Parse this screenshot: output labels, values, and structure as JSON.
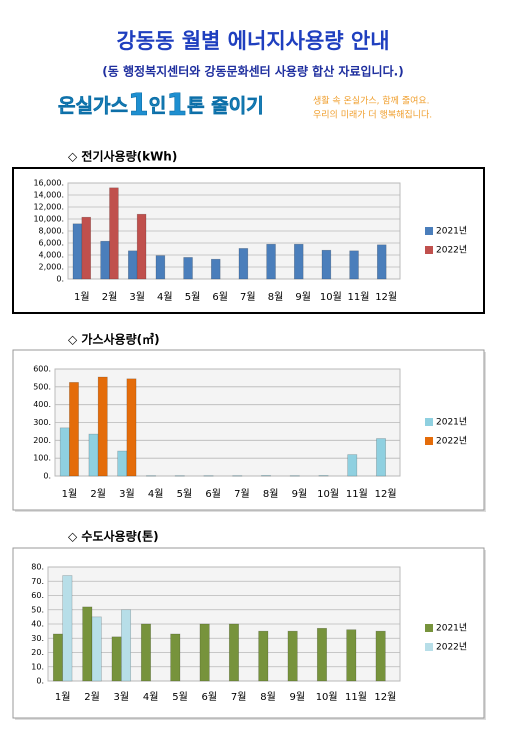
{
  "header": {
    "title": "강동동 월별 에너지사용량 안내",
    "subtitle": "(동 행정복지센터와 강동문화센터 사용량 합산 자료입니다.)",
    "banner": [
      "온실가스",
      "1",
      "인",
      "1",
      "톤 줄이기"
    ],
    "slogan": [
      "생활 속 온실가스, 함께 줄여요.",
      "우리의 미래가 더 행복해집니다."
    ]
  },
  "chart_data": [
    {
      "type": "bar",
      "title": "◇ 전기사용량(kWh)",
      "categories": [
        "1월",
        "2월",
        "3월",
        "4월",
        "5월",
        "6월",
        "7월",
        "8월",
        "9월",
        "10월",
        "11월",
        "12월"
      ],
      "series": [
        {
          "name": "2021년",
          "color": "#4a7ebb",
          "values": [
            9200,
            6300,
            4700,
            3900,
            3600,
            3300,
            5100,
            5800,
            5800,
            4800,
            4700,
            5700
          ]
        },
        {
          "name": "2022년",
          "color": "#c0504d",
          "values": [
            10300,
            15200,
            10800,
            null,
            null,
            null,
            null,
            null,
            null,
            null,
            null,
            null
          ]
        }
      ],
      "ylim": [
        0,
        16000
      ],
      "yticks": [
        {
          "value": 0,
          "label": "0."
        },
        {
          "value": 2000,
          "label": "2,000."
        },
        {
          "value": 4000,
          "label": "4,000."
        },
        {
          "value": 6000,
          "label": "6,000."
        },
        {
          "value": 8000,
          "label": "8,000."
        },
        {
          "value": 10000,
          "label": "10,000."
        },
        {
          "value": 12000,
          "label": "12,000."
        },
        {
          "value": 14000,
          "label": "14,000."
        },
        {
          "value": 16000,
          "label": "16,000."
        }
      ],
      "grid": true,
      "legend": "right"
    },
    {
      "type": "bar",
      "title": "◇ 가스사용량(㎥)",
      "categories": [
        "1월",
        "2월",
        "3월",
        "4월",
        "5월",
        "6월",
        "7월",
        "8월",
        "9월",
        "10월",
        "11월",
        "12월"
      ],
      "series": [
        {
          "name": "2021년",
          "color": "#8fd0e0",
          "values": [
            270,
            235,
            140,
            2,
            2,
            2,
            2,
            3,
            2,
            3,
            120,
            210
          ]
        },
        {
          "name": "2022년",
          "color": "#e46c0a",
          "values": [
            525,
            555,
            545,
            null,
            null,
            null,
            null,
            null,
            null,
            null,
            null,
            null
          ]
        }
      ],
      "ylim": [
        0,
        600
      ],
      "yticks": [
        {
          "value": 0,
          "label": "0."
        },
        {
          "value": 100,
          "label": "100."
        },
        {
          "value": 200,
          "label": "200."
        },
        {
          "value": 300,
          "label": "300."
        },
        {
          "value": 400,
          "label": "400."
        },
        {
          "value": 500,
          "label": "500."
        },
        {
          "value": 600,
          "label": "600."
        }
      ],
      "grid": true,
      "legend": "right"
    },
    {
      "type": "bar",
      "title": "◇ 수도사용량(톤)",
      "categories": [
        "1월",
        "2월",
        "3월",
        "4월",
        "5월",
        "6월",
        "7월",
        "8월",
        "9월",
        "10월",
        "11월",
        "12월"
      ],
      "series": [
        {
          "name": "2021년",
          "color": "#77933c",
          "values": [
            33,
            52,
            31,
            40,
            33,
            40,
            40,
            35,
            35,
            37,
            36,
            35
          ]
        },
        {
          "name": "2022년",
          "color": "#b7dee8",
          "values": [
            74,
            45,
            50,
            null,
            null,
            null,
            null,
            null,
            null,
            null,
            null,
            null
          ]
        }
      ],
      "ylim": [
        0,
        80
      ],
      "yticks": [
        {
          "value": 0,
          "label": "0."
        },
        {
          "value": 10,
          "label": "10."
        },
        {
          "value": 20,
          "label": "20."
        },
        {
          "value": 30,
          "label": "30."
        },
        {
          "value": 40,
          "label": "40."
        },
        {
          "value": 50,
          "label": "50."
        },
        {
          "value": 60,
          "label": "60."
        },
        {
          "value": 70,
          "label": "70."
        },
        {
          "value": 80,
          "label": "80."
        }
      ],
      "grid": true,
      "legend": "right"
    }
  ]
}
